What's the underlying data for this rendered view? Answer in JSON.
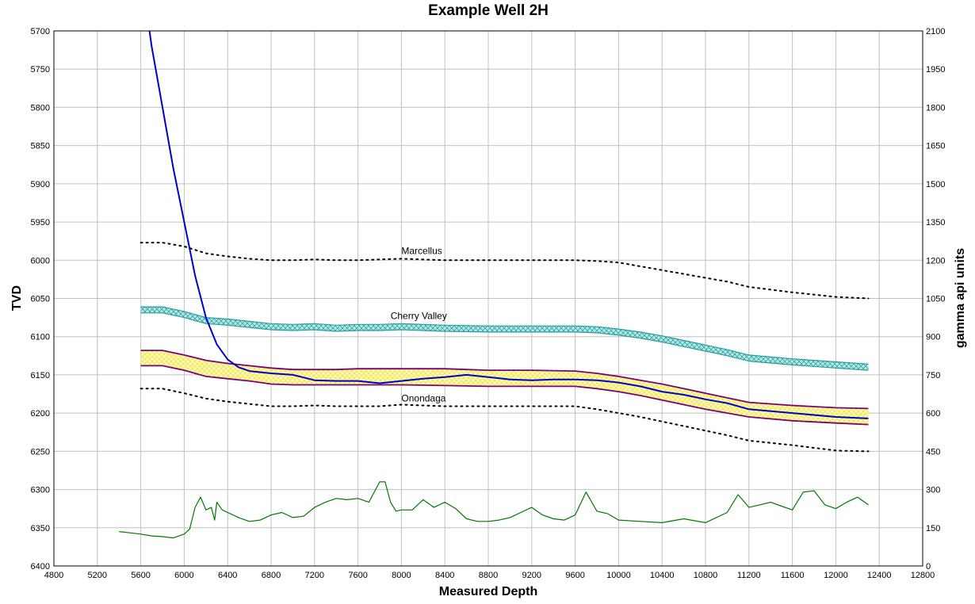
{
  "chart_data": {
    "type": "line",
    "title": "Example Well 2H",
    "xlabel": "Measured Depth",
    "ylabel": "TVD",
    "y2label": "gamma api units",
    "xlim": [
      4800,
      12800
    ],
    "ylim": [
      5700,
      6400
    ],
    "y_inverted": true,
    "y2lim": [
      0,
      2100
    ],
    "grid": true,
    "x_ticks": [
      "4800",
      "5200",
      "5600",
      "6000",
      "6400",
      "6800",
      "7200",
      "7600",
      "8000",
      "8400",
      "8800",
      "9200",
      "9600",
      "10000",
      "10400",
      "10800",
      "11200",
      "11600",
      "12000",
      "12400",
      "12800"
    ],
    "y_ticks": [
      "5700",
      "5750",
      "5800",
      "5850",
      "5900",
      "5950",
      "6000",
      "6050",
      "6100",
      "6150",
      "6200",
      "6250",
      "6300",
      "6350",
      "6400"
    ],
    "y2_ticks": [
      "2100",
      "1950",
      "1800",
      "1650",
      "1500",
      "1350",
      "1200",
      "1050",
      "900",
      "750",
      "600",
      "450",
      "300",
      "150",
      "0"
    ],
    "colors": {
      "wellbore": "#0000cc",
      "gamma": "#007700",
      "cherry_valley_line": "#20a0a0",
      "cherry_valley_fill": "#aee8e8",
      "target_line": "#7a007a",
      "target_fill": "#fffa9a",
      "formation_dotted": "#000000",
      "grid": "#c0c0c0"
    },
    "annotations": [
      {
        "text": "Marcellus",
        "x": 8000,
        "y": 5992
      },
      {
        "text": "Cherry Valley",
        "x": 7900,
        "y": 6077
      },
      {
        "text": "Onondaga",
        "x": 8000,
        "y": 6185
      }
    ],
    "series": [
      {
        "id": "marcellus",
        "style": "dotted",
        "axis": "y",
        "x": [
          5600,
          5800,
          6000,
          6200,
          6400,
          6600,
          6800,
          7000,
          7200,
          7400,
          7600,
          7800,
          8000,
          8400,
          8800,
          9200,
          9600,
          9800,
          10000,
          10200,
          10400,
          10600,
          10800,
          11000,
          11200,
          11600,
          12000,
          12300
        ],
        "y": [
          5977,
          5977,
          5982,
          5991,
          5995,
          5998,
          6000,
          6000,
          5999,
          6000,
          6000,
          5999,
          5998,
          6000,
          6000,
          6000,
          6000,
          6001,
          6003,
          6008,
          6013,
          6018,
          6023,
          6028,
          6035,
          6042,
          6048,
          6050
        ]
      },
      {
        "id": "cherry-valley-top",
        "style": "solid",
        "axis": "y",
        "x": [
          5600,
          5800,
          6000,
          6200,
          6400,
          6600,
          6800,
          7000,
          7200,
          7400,
          7600,
          7800,
          8000,
          8400,
          8800,
          9200,
          9600,
          9800,
          10000,
          10200,
          10400,
          10600,
          10800,
          11000,
          11200,
          11600,
          12000,
          12300
        ],
        "y": [
          6061,
          6061,
          6067,
          6075,
          6077,
          6080,
          6083,
          6084,
          6083,
          6085,
          6084,
          6084,
          6083,
          6085,
          6086,
          6086,
          6086,
          6087,
          6090,
          6094,
          6099,
          6105,
          6111,
          6117,
          6124,
          6129,
          6133,
          6136
        ]
      },
      {
        "id": "cherry-valley-base",
        "style": "solid",
        "axis": "y",
        "x": [
          5600,
          5800,
          6000,
          6200,
          6400,
          6600,
          6800,
          7000,
          7200,
          7400,
          7600,
          7800,
          8000,
          8400,
          8800,
          9200,
          9600,
          9800,
          10000,
          10200,
          10400,
          10600,
          10800,
          11000,
          11200,
          11600,
          12000,
          12300
        ],
        "y": [
          6069,
          6069,
          6075,
          6083,
          6085,
          6088,
          6091,
          6092,
          6091,
          6093,
          6092,
          6092,
          6091,
          6093,
          6094,
          6094,
          6094,
          6095,
          6098,
          6102,
          6107,
          6113,
          6119,
          6125,
          6132,
          6137,
          6141,
          6144
        ]
      },
      {
        "id": "target-top",
        "style": "solid",
        "axis": "y",
        "x": [
          5600,
          5800,
          6000,
          6200,
          6400,
          6600,
          6800,
          7000,
          7200,
          7400,
          7600,
          7800,
          8000,
          8400,
          8800,
          9200,
          9600,
          9800,
          10000,
          10200,
          10400,
          10600,
          10800,
          11000,
          11200,
          11600,
          12000,
          12300
        ],
        "y": [
          6118,
          6118,
          6124,
          6131,
          6135,
          6138,
          6141,
          6143,
          6143,
          6143,
          6142,
          6142,
          6142,
          6142,
          6144,
          6144,
          6145,
          6148,
          6152,
          6157,
          6162,
          6168,
          6174,
          6180,
          6186,
          6190,
          6193,
          6194
        ]
      },
      {
        "id": "target-base",
        "style": "solid",
        "axis": "y",
        "x": [
          5600,
          5800,
          6000,
          6200,
          6400,
          6600,
          6800,
          7000,
          7200,
          7400,
          7600,
          7800,
          8000,
          8400,
          8800,
          9200,
          9600,
          9800,
          10000,
          10200,
          10400,
          10600,
          10800,
          11000,
          11200,
          11600,
          12000,
          12300
        ],
        "y": [
          6138,
          6138,
          6144,
          6152,
          6155,
          6158,
          6162,
          6163,
          6163,
          6163,
          6163,
          6163,
          6163,
          6164,
          6165,
          6165,
          6165,
          6168,
          6172,
          6177,
          6183,
          6189,
          6195,
          6200,
          6205,
          6210,
          6213,
          6215
        ]
      },
      {
        "id": "onondaga",
        "style": "dotted",
        "axis": "y",
        "x": [
          5600,
          5800,
          6000,
          6200,
          6400,
          6600,
          6800,
          7000,
          7200,
          7400,
          7600,
          7800,
          8000,
          8400,
          8800,
          9200,
          9600,
          9800,
          10000,
          10200,
          10400,
          10600,
          10800,
          11000,
          11200,
          11600,
          12000,
          12300
        ],
        "y": [
          6168,
          6168,
          6174,
          6181,
          6185,
          6188,
          6191,
          6191,
          6190,
          6191,
          6191,
          6191,
          6189,
          6191,
          6191,
          6191,
          6191,
          6195,
          6200,
          6205,
          6211,
          6217,
          6223,
          6229,
          6236,
          6242,
          6249,
          6250
        ]
      },
      {
        "id": "wellbore",
        "style": "solid",
        "axis": "y",
        "x": [
          5680,
          5700,
          5800,
          5900,
          6000,
          6100,
          6200,
          6300,
          6400,
          6500,
          6600,
          6800,
          7000,
          7200,
          7400,
          7600,
          7800,
          8000,
          8200,
          8400,
          8600,
          8800,
          9000,
          9200,
          9400,
          9600,
          9800,
          10000,
          10200,
          10400,
          10600,
          10800,
          11000,
          11200,
          11600,
          12000,
          12300
        ],
        "y": [
          5700,
          5720,
          5800,
          5880,
          5950,
          6020,
          6075,
          6110,
          6130,
          6140,
          6145,
          6148,
          6150,
          6157,
          6158,
          6158,
          6161,
          6158,
          6155,
          6153,
          6150,
          6153,
          6156,
          6157,
          6156,
          6156,
          6157,
          6160,
          6165,
          6172,
          6176,
          6182,
          6187,
          6195,
          6200,
          6205,
          6207
        ]
      },
      {
        "id": "gamma",
        "style": "solid",
        "axis": "y2",
        "x": [
          5400,
          5500,
          5600,
          5700,
          5800,
          5900,
          6000,
          6050,
          6100,
          6150,
          6200,
          6250,
          6280,
          6300,
          6350,
          6400,
          6500,
          6600,
          6700,
          6800,
          6900,
          7000,
          7100,
          7200,
          7300,
          7400,
          7500,
          7600,
          7700,
          7800,
          7850,
          7900,
          7950,
          8000,
          8100,
          8200,
          8300,
          8400,
          8500,
          8600,
          8700,
          8800,
          8900,
          9000,
          9100,
          9200,
          9300,
          9400,
          9500,
          9600,
          9700,
          9800,
          9900,
          10000,
          10200,
          10400,
          10600,
          10800,
          11000,
          11100,
          11200,
          11300,
          11400,
          11500,
          11600,
          11700,
          11800,
          11900,
          12000,
          12100,
          12200,
          12300
        ],
        "y": [
          135,
          130,
          125,
          118,
          115,
          110,
          125,
          145,
          230,
          270,
          220,
          230,
          180,
          250,
          220,
          210,
          190,
          175,
          180,
          200,
          210,
          190,
          195,
          230,
          250,
          265,
          260,
          265,
          250,
          330,
          330,
          250,
          215,
          220,
          220,
          260,
          230,
          250,
          225,
          185,
          175,
          175,
          180,
          190,
          210,
          230,
          200,
          185,
          180,
          200,
          290,
          215,
          205,
          180,
          175,
          170,
          185,
          170,
          210,
          280,
          230,
          240,
          250,
          235,
          220,
          290,
          295,
          240,
          225,
          250,
          270,
          240
        ]
      }
    ]
  }
}
